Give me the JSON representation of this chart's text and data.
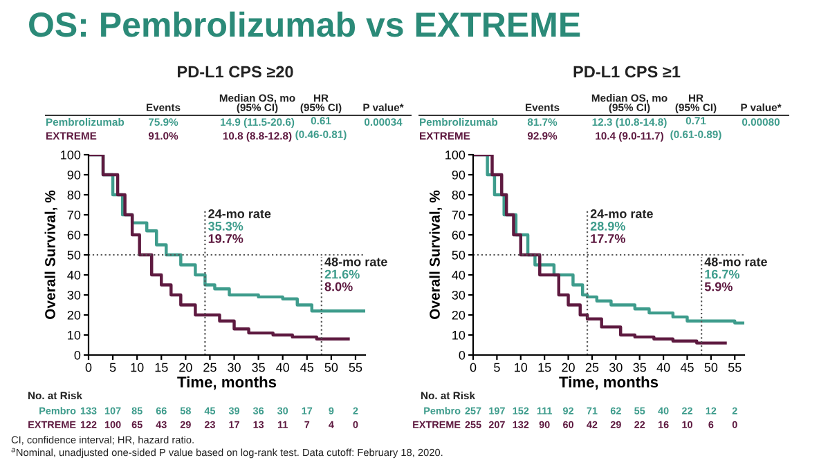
{
  "chart_data": [
    {
      "type": "step",
      "title": "OS: Pembrolizumab vs EXTREME",
      "subtitle": "PD-L1 CPS ≥20",
      "xlabel": "Time, months",
      "ylabel": "Overall Survival, %",
      "xlim": [
        0,
        57
      ],
      "ylim": [
        0,
        100
      ],
      "xticks": [
        0,
        5,
        10,
        15,
        20,
        25,
        30,
        35,
        40,
        45,
        50,
        55
      ],
      "yticks": [
        0,
        10,
        20,
        30,
        40,
        50,
        60,
        70,
        80,
        90,
        100
      ],
      "grid": false,
      "legend": false,
      "series": [
        {
          "name": "Pembrolizumab",
          "color": "#3e9c8c",
          "x": [
            0,
            3,
            5,
            7,
            9,
            12,
            14,
            16,
            19,
            22,
            24,
            26,
            29,
            35,
            40,
            43,
            46,
            48,
            57
          ],
          "values": [
            100,
            90,
            80,
            70,
            66,
            62,
            55,
            50,
            45,
            40,
            35,
            33,
            30,
            29,
            28,
            25,
            22,
            22,
            22
          ]
        },
        {
          "name": "EXTREME",
          "color": "#5e1a40",
          "x": [
            0,
            3,
            6,
            7.5,
            9,
            10.5,
            13,
            15,
            17,
            19,
            22,
            24,
            27,
            30,
            33,
            38,
            42,
            47,
            53.5
          ],
          "values": [
            100,
            90,
            80,
            70,
            60,
            50,
            40,
            35,
            30,
            25,
            20,
            20,
            17,
            13,
            11,
            10,
            9,
            8,
            8
          ]
        }
      ],
      "ref_lines": [
        {
          "axis": "y",
          "value": 50,
          "line_style": "dotted",
          "color": "#555555"
        },
        {
          "axis": "x",
          "value": 24,
          "label": "24-mo rate",
          "line_style": "dotted",
          "color": "#555555"
        },
        {
          "axis": "x",
          "value": 48,
          "label": "48-mo rate",
          "line_style": "dotted",
          "color": "#555555"
        }
      ],
      "annotations": [
        "Events",
        "Median OS, mo\n(95% CI)",
        "HR\n(95% CI)",
        "P value*",
        "75.9%",
        "14.9 (11.5-20.6)",
        "0.61\n(0.46-0.81)",
        "0.00034",
        "91.0%",
        "10.8 (8.8-12.8)",
        "No. at Risk",
        "Pembro",
        "133 107 85 66 58 45 39 36 30 17 9 2",
        "EXTREME",
        "122 100 65 43 29 23 17 13 11 7 4 0",
        "35.3%",
        "19.7%",
        "21.6%",
        "8.0%",
        "CI, confidence interval; HR, hazard ratio.",
        "$^{a}$Nominal, unadjusted one-sided P value based on log-rank test. Data cutoff: February 18, 2020."
      ]
    },
    {
      "type": "step",
      "subtitle": "PD-L1 CPS ≥1",
      "xlabel": "Time, months",
      "ylabel": "Overall Survival, %",
      "xlim": [
        0,
        57
      ],
      "ylim": [
        0,
        100
      ],
      "xticks": [
        0,
        5,
        10,
        15,
        20,
        25,
        30,
        35,
        40,
        45,
        50,
        55
      ],
      "yticks": [
        0,
        10,
        20,
        30,
        40,
        50,
        60,
        70,
        80,
        90,
        100
      ],
      "grid": false,
      "legend": false,
      "series": [
        {
          "name": "Pembrolizumab",
          "color": "#3e9c8c",
          "x": [
            0,
            3,
            4.5,
            6.5,
            9,
            11.5,
            13,
            17,
            21,
            23,
            24,
            26,
            29,
            34,
            37,
            42,
            45,
            48,
            55,
            57
          ],
          "values": [
            100,
            90,
            80,
            70,
            60,
            50,
            45,
            40,
            35,
            30,
            29,
            27,
            25,
            23,
            21,
            19,
            17,
            17,
            16,
            16
          ]
        },
        {
          "name": "EXTREME",
          "color": "#5e1a40",
          "x": [
            0,
            4,
            6,
            7,
            8.5,
            10,
            14,
            18,
            20,
            22.5,
            24,
            27,
            31,
            34,
            38,
            42,
            47,
            53
          ],
          "values": [
            100,
            90,
            80,
            70,
            60,
            50,
            40,
            30,
            25,
            20,
            18,
            14,
            10,
            9,
            8,
            7,
            6,
            6
          ]
        }
      ],
      "ref_lines": [
        {
          "axis": "y",
          "value": 50,
          "line_style": "dotted",
          "color": "#555555"
        },
        {
          "axis": "x",
          "value": 24,
          "label": "24-mo rate",
          "line_style": "dotted",
          "color": "#555555"
        },
        {
          "axis": "x",
          "value": 48,
          "label": "48-mo rate",
          "line_style": "dotted",
          "color": "#555555"
        }
      ],
      "annotations": [
        "Events",
        "Median OS, mo\n(95% CI)",
        "HR\n(95% CI)",
        "P value*",
        "81.7%",
        "12.3 (10.8-14.8)",
        "0.71\n(0.61-0.89)",
        "0.00080",
        "92.9%",
        "10.4 (9.0-11.7)",
        "No. at Risk",
        "Pembro",
        "257 197 152 111 92 71 62 55 40 22 12 2",
        "EXTREME",
        "255 207 132 90 60 42 29 22 16 10 6 0",
        "28.9%",
        "17.7%",
        "16.7%",
        "5.9%"
      ]
    }
  ]
}
